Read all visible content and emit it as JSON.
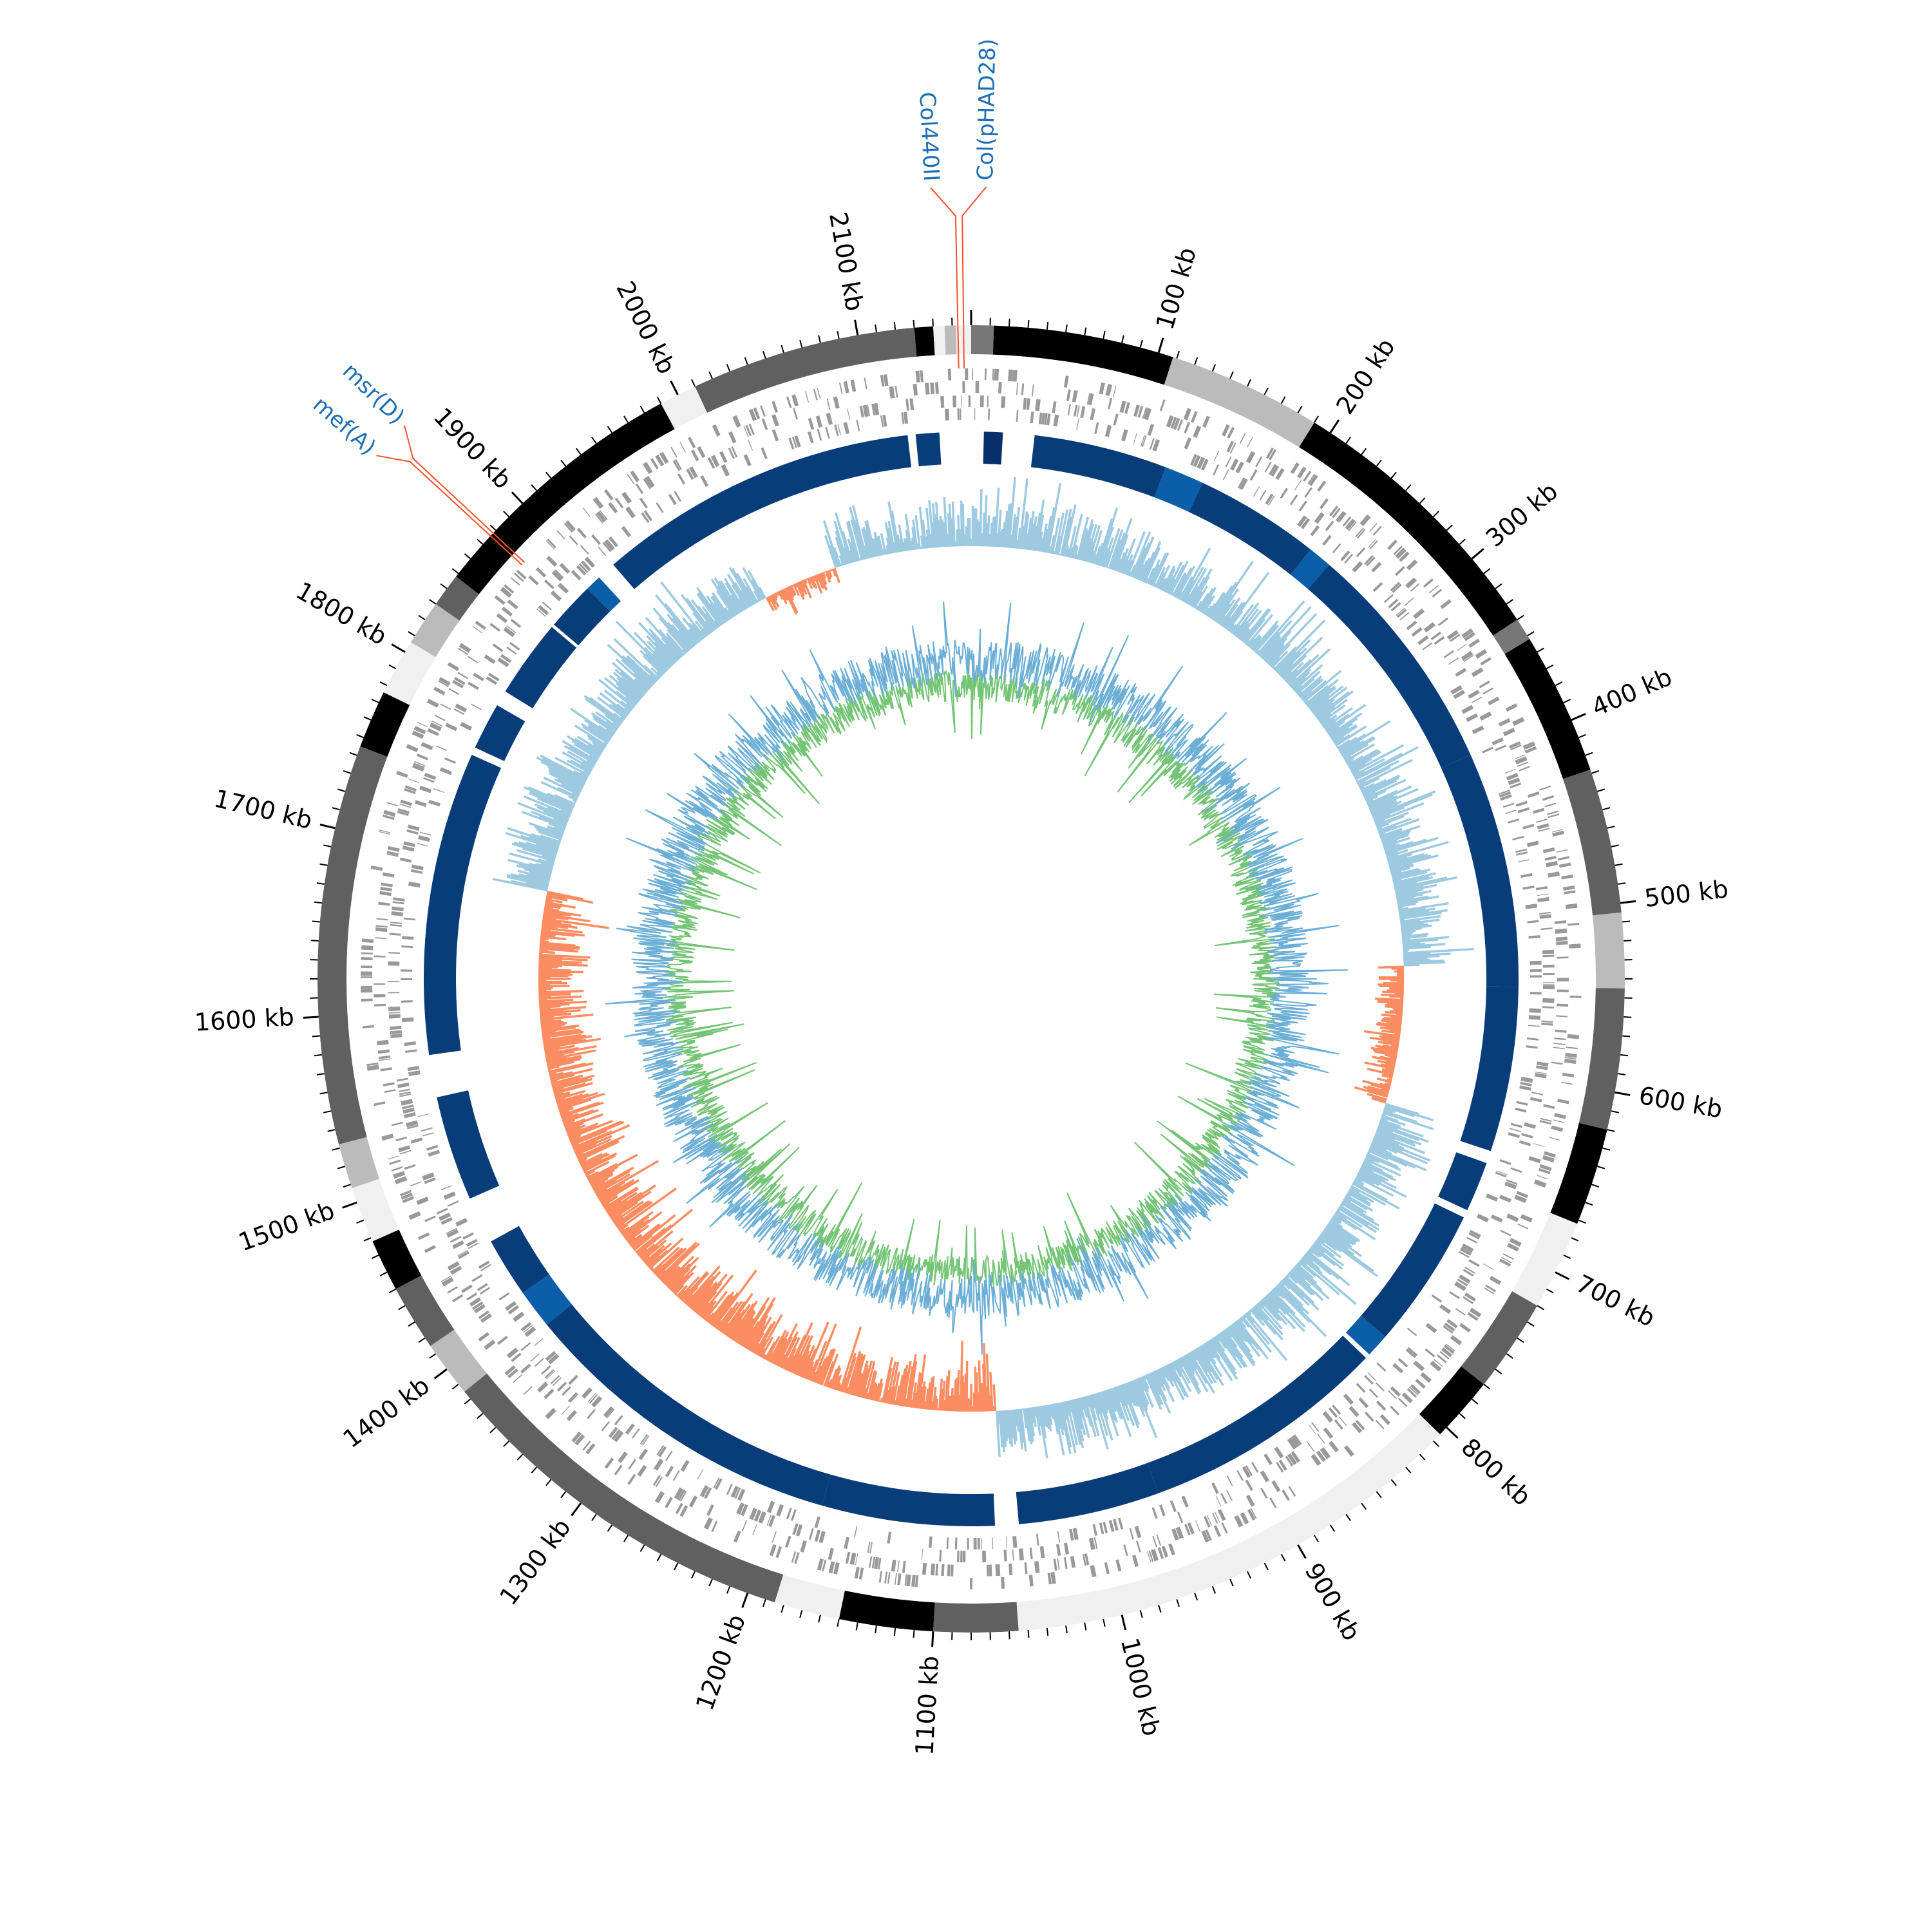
{
  "chart_data": {
    "type": "circular-genome-map",
    "genome_length_kb": 2160,
    "axis": {
      "ticks": [
        {
          "kb": 100,
          "label": "100 kb"
        },
        {
          "kb": 200,
          "label": "200 kb"
        },
        {
          "kb": 300,
          "label": "300 kb"
        },
        {
          "kb": 400,
          "label": "400 kb"
        },
        {
          "kb": 500,
          "label": "500 kb"
        },
        {
          "kb": 600,
          "label": "600 kb"
        },
        {
          "kb": 700,
          "label": "700 kb"
        },
        {
          "kb": 800,
          "label": "800 kb"
        },
        {
          "kb": 900,
          "label": "900 kb"
        },
        {
          "kb": 1000,
          "label": "1000 kb"
        },
        {
          "kb": 1100,
          "label": "1100 kb"
        },
        {
          "kb": 1200,
          "label": "1200 kb"
        },
        {
          "kb": 1300,
          "label": "1300 kb"
        },
        {
          "kb": 1400,
          "label": "1400 kb"
        },
        {
          "kb": 1500,
          "label": "1500 kb"
        },
        {
          "kb": 1600,
          "label": "1600 kb"
        },
        {
          "kb": 1700,
          "label": "1700 kb"
        },
        {
          "kb": 1800,
          "label": "1800 kb"
        },
        {
          "kb": 1900,
          "label": "1900 kb"
        },
        {
          "kb": 2000,
          "label": "2000 kb"
        },
        {
          "kb": 2100,
          "label": "2100 kb"
        }
      ],
      "minor_tick_kb": 10
    },
    "contigs": [
      {
        "start": 0,
        "end": 12,
        "shade": "#777777"
      },
      {
        "start": 12,
        "end": 108,
        "shade": "#000000"
      },
      {
        "start": 108,
        "end": 190,
        "shade": "#bbbbbb"
      },
      {
        "start": 190,
        "end": 340,
        "shade": "#000000"
      },
      {
        "start": 340,
        "end": 352,
        "shade": "#777777"
      },
      {
        "start": 352,
        "end": 428,
        "shade": "#000000"
      },
      {
        "start": 428,
        "end": 505,
        "shade": "#606060"
      },
      {
        "start": 505,
        "end": 545,
        "shade": "#bbbbbb"
      },
      {
        "start": 545,
        "end": 620,
        "shade": "#606060"
      },
      {
        "start": 620,
        "end": 672,
        "shade": "#000000"
      },
      {
        "start": 672,
        "end": 720,
        "shade": "#f0f0f0"
      },
      {
        "start": 720,
        "end": 770,
        "shade": "#606060"
      },
      {
        "start": 770,
        "end": 805,
        "shade": "#000000"
      },
      {
        "start": 805,
        "end": 1055,
        "shade": "#f0f0f0"
      },
      {
        "start": 1055,
        "end": 1100,
        "shade": "#606060"
      },
      {
        "start": 1100,
        "end": 1150,
        "shade": "#000000"
      },
      {
        "start": 1150,
        "end": 1185,
        "shade": "#f0f0f0"
      },
      {
        "start": 1185,
        "end": 1385,
        "shade": "#606060"
      },
      {
        "start": 1385,
        "end": 1415,
        "shade": "#bbbbbb"
      },
      {
        "start": 1415,
        "end": 1450,
        "shade": "#606060"
      },
      {
        "start": 1450,
        "end": 1478,
        "shade": "#000000"
      },
      {
        "start": 1478,
        "end": 1508,
        "shade": "#f0f0f0"
      },
      {
        "start": 1508,
        "end": 1532,
        "shade": "#bbbbbb"
      },
      {
        "start": 1532,
        "end": 1745,
        "shade": "#606060"
      },
      {
        "start": 1745,
        "end": 1776,
        "shade": "#000000"
      },
      {
        "start": 1776,
        "end": 1806,
        "shade": "#f0f0f0"
      },
      {
        "start": 1806,
        "end": 1830,
        "shade": "#bbbbbb"
      },
      {
        "start": 1830,
        "end": 1848,
        "shade": "#606060"
      },
      {
        "start": 1848,
        "end": 1990,
        "shade": "#000000"
      },
      {
        "start": 1990,
        "end": 2010,
        "shade": "#f0f0f0"
      },
      {
        "start": 2010,
        "end": 2130,
        "shade": "#606060"
      },
      {
        "start": 2130,
        "end": 2140,
        "shade": "#000000"
      },
      {
        "start": 2140,
        "end": 2146,
        "shade": "#f0f0f0"
      },
      {
        "start": 2146,
        "end": 2152,
        "shade": "#bbbbbb"
      },
      {
        "start": 2152,
        "end": 2160,
        "shade": "#f0f0f0"
      }
    ],
    "homology_blocks": [
      {
        "start": 8,
        "end": 20,
        "color": "#08306b"
      },
      {
        "start": 40,
        "end": 125,
        "color": "#083d7a"
      },
      {
        "start": 125,
        "end": 150,
        "color": "#0b5ea8"
      },
      {
        "start": 150,
        "end": 230,
        "color": "#083d7a"
      },
      {
        "start": 230,
        "end": 245,
        "color": "#0b5ea8"
      },
      {
        "start": 245,
        "end": 395,
        "color": "#083d7a"
      },
      {
        "start": 395,
        "end": 545,
        "color": "#083d7a"
      },
      {
        "start": 545,
        "end": 650,
        "color": "#083d7a"
      },
      {
        "start": 658,
        "end": 690,
        "color": "#083d7a"
      },
      {
        "start": 695,
        "end": 785,
        "color": "#083d7a"
      },
      {
        "start": 785,
        "end": 800,
        "color": "#0b5ea8"
      },
      {
        "start": 803,
        "end": 960,
        "color": "#083d7a"
      },
      {
        "start": 960,
        "end": 1050,
        "color": "#083d7a"
      },
      {
        "start": 1065,
        "end": 1175,
        "color": "#083d7a"
      },
      {
        "start": 1175,
        "end": 1385,
        "color": "#083d7a"
      },
      {
        "start": 1385,
        "end": 1410,
        "color": "#0b5ea8"
      },
      {
        "start": 1410,
        "end": 1448,
        "color": "#083d7a"
      },
      {
        "start": 1478,
        "end": 1545,
        "color": "#083d7a"
      },
      {
        "start": 1572,
        "end": 1765,
        "color": "#083d7a"
      },
      {
        "start": 1770,
        "end": 1800,
        "color": "#083d7a"
      },
      {
        "start": 1810,
        "end": 1860,
        "color": "#083d7a"
      },
      {
        "start": 1862,
        "end": 1893,
        "color": "#083d7a"
      },
      {
        "start": 1893,
        "end": 1903,
        "color": "#0b5ea8"
      },
      {
        "start": 1915,
        "end": 2120,
        "color": "#083d7a"
      },
      {
        "start": 2125,
        "end": 2140,
        "color": "#083d7a"
      }
    ],
    "gene_annotations": [
      {
        "label": "Col440II",
        "kb": 2153
      },
      {
        "label": "Col(pHAD28)",
        "kb": 2156
      },
      {
        "label": "mef(A)",
        "kb": 1876
      },
      {
        "label": "msr(D)",
        "kb": 1878
      }
    ],
    "colors": {
      "annotation_label": "#1f6fb4",
      "annotation_line": "#f4502a",
      "cds": "#999999",
      "gc_skew_positive": "#9ecae1",
      "gc_skew_negative": "#fc8d62",
      "gc_content_outer": "#6baed6",
      "gc_content_inner": "#74c476"
    }
  }
}
